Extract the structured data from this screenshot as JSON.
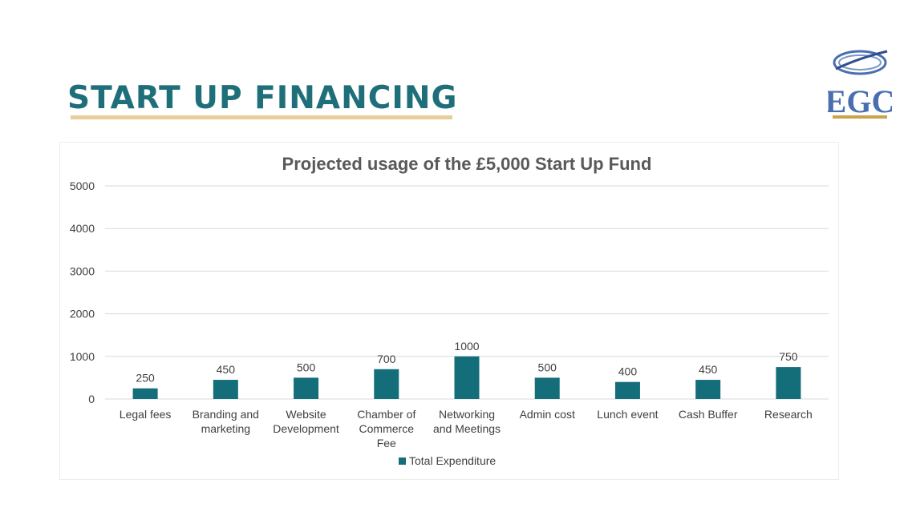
{
  "slide": {
    "title": "START UP FINANCING"
  },
  "logo": {
    "text": "EGC",
    "colors": {
      "primary": "#4a6fb0",
      "gold": "#c9a54a"
    }
  },
  "colors": {
    "title": "#1f6f7a",
    "underline": "#e6cf9b",
    "bar": "#146e7a",
    "grid": "#d9d9d9",
    "text": "#404040"
  },
  "chart_data": {
    "type": "bar",
    "title": "Projected usage of the £5,000 Start Up Fund",
    "xlabel": "",
    "ylabel": "",
    "categories": [
      "Legal fees",
      "Branding and marketing",
      "Website Development",
      "Chamber of Commerce Fee",
      "Networking and Meetings",
      "Admin cost",
      "Lunch event",
      "Cash Buffer",
      "Research"
    ],
    "category_lines": [
      [
        "Legal fees"
      ],
      [
        "Branding and",
        "marketing"
      ],
      [
        "Website",
        "Development"
      ],
      [
        "Chamber of",
        "Commerce",
        "Fee"
      ],
      [
        "Networking",
        "and Meetings"
      ],
      [
        "Admin cost"
      ],
      [
        "Lunch event"
      ],
      [
        "Cash Buffer"
      ],
      [
        "Research"
      ]
    ],
    "series": [
      {
        "name": "Total Expenditure",
        "values": [
          250,
          450,
          500,
          700,
          1000,
          500,
          400,
          450,
          750
        ]
      }
    ],
    "ylim": [
      0,
      5000
    ],
    "yticks": [
      0,
      1000,
      2000,
      3000,
      4000,
      5000
    ],
    "grid": true,
    "legend": "bottom",
    "data_labels": true
  }
}
